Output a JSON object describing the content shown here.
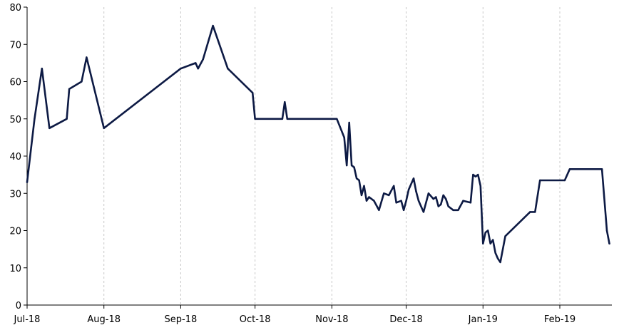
{
  "chart_data": {
    "type": "line",
    "title": "",
    "xlabel": "",
    "ylabel": "",
    "ylim": [
      0,
      80
    ],
    "yticks": [
      0,
      10,
      20,
      30,
      40,
      50,
      60,
      70,
      80
    ],
    "xlim": [
      "2018-07-01",
      "2019-02-28"
    ],
    "xticks": [
      {
        "date": "2018-07-01",
        "label": "Jul-18"
      },
      {
        "date": "2018-08-01",
        "label": "Aug-18"
      },
      {
        "date": "2018-09-01",
        "label": "Sep-18"
      },
      {
        "date": "2018-10-01",
        "label": "Oct-18"
      },
      {
        "date": "2018-11-01",
        "label": "Nov-18"
      },
      {
        "date": "2018-12-01",
        "label": "Dec-18"
      },
      {
        "date": "2019-01-01",
        "label": "Jan-19"
      },
      {
        "date": "2019-02-01",
        "label": "Feb-19"
      }
    ],
    "grid": "vertical-dashed",
    "legend": "none",
    "line_color": "#0d1a44",
    "series": [
      {
        "x": [
          "2018-07-01",
          "2018-07-04",
          "2018-07-07",
          "2018-07-10",
          "2018-07-17",
          "2018-07-18",
          "2018-07-23",
          "2018-07-25",
          "2018-08-01",
          "2018-09-01",
          "2018-09-07",
          "2018-09-08",
          "2018-09-10",
          "2018-09-14",
          "2018-09-20",
          "2018-09-30",
          "2018-10-01",
          "2018-10-12",
          "2018-10-13",
          "2018-10-14",
          "2018-10-15",
          "2018-11-03",
          "2018-11-06",
          "2018-11-07",
          "2018-11-08",
          "2018-11-09",
          "2018-11-10",
          "2018-11-11",
          "2018-11-12",
          "2018-11-13",
          "2018-11-14",
          "2018-11-15",
          "2018-11-16",
          "2018-11-18",
          "2018-11-20",
          "2018-11-22",
          "2018-11-24",
          "2018-11-26",
          "2018-11-27",
          "2018-11-29",
          "2018-11-30",
          "2018-12-01",
          "2018-12-02",
          "2018-12-04",
          "2018-12-05",
          "2018-12-06",
          "2018-12-07",
          "2018-12-08",
          "2018-12-10",
          "2018-12-12",
          "2018-12-13",
          "2018-12-14",
          "2018-12-15",
          "2018-12-16",
          "2018-12-17",
          "2018-12-18",
          "2018-12-20",
          "2018-12-22",
          "2018-12-24",
          "2018-12-27",
          "2018-12-28",
          "2018-12-29",
          "2018-12-30",
          "2018-12-31",
          "2019-01-01",
          "2019-01-02",
          "2019-01-03",
          "2019-01-04",
          "2019-01-05",
          "2019-01-06",
          "2019-01-07",
          "2019-01-08",
          "2019-01-10",
          "2019-01-20",
          "2019-01-22",
          "2019-01-24",
          "2019-02-03",
          "2019-02-05",
          "2019-02-18",
          "2019-02-20",
          "2019-02-21"
        ],
        "values": [
          33,
          50,
          63.5,
          47.5,
          50,
          58,
          60,
          66.5,
          47.5,
          63.5,
          65,
          63.5,
          66,
          75,
          63.5,
          57,
          50,
          50,
          54.5,
          50,
          50,
          50,
          45,
          37.5,
          49,
          37.5,
          37,
          34,
          33.5,
          29.5,
          32,
          28,
          29,
          28,
          25.5,
          30,
          29.5,
          32,
          27.5,
          28,
          25.5,
          28,
          31,
          34,
          30.5,
          28,
          26.5,
          25,
          30,
          28.5,
          29,
          26.5,
          27,
          29.5,
          28.5,
          26.5,
          25.5,
          25.5,
          28,
          27.5,
          35,
          34.5,
          35,
          32,
          16.5,
          19.5,
          20,
          16.5,
          17.5,
          14,
          12.5,
          11.5,
          18.5,
          25,
          25,
          33.5,
          33.5,
          36.5,
          36.5,
          20,
          16.5
        ]
      }
    ]
  }
}
